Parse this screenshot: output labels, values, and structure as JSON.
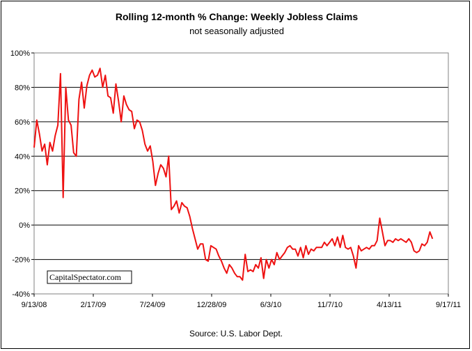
{
  "chart_data": {
    "type": "line",
    "title": "Rolling 12-month %  Change: Weekly Jobless Claims",
    "subtitle": "not seasonally adjusted",
    "source": "Source: U.S. Labor Dept.",
    "watermark": "CapitalSpectator.com",
    "x_start_date": "2008-09-13",
    "x_end_date": "2011-09-17",
    "xlabel": "",
    "ylabel": "",
    "ylim": [
      -40,
      100
    ],
    "y_ticks": [
      100,
      80,
      60,
      40,
      20,
      0,
      -20,
      -40
    ],
    "y_tick_labels": [
      "100%",
      "80%",
      "60%",
      "40%",
      "20%",
      "0%",
      "-20%",
      "-40%"
    ],
    "x_ticks": [
      "2008-09-13",
      "2009-02-17",
      "2009-07-24",
      "2009-12-28",
      "2010-06-03",
      "2010-11-07",
      "2011-04-13",
      "2011-09-17"
    ],
    "x_tick_labels": [
      "9/13/08",
      "2/17/09",
      "7/24/09",
      "12/28/09",
      "6/3/10",
      "11/7/10",
      "4/13/11",
      "9/17/11"
    ],
    "grid": "horizontal",
    "legend": "none",
    "line_color": "#ee1111",
    "series": [
      {
        "values": [
          [
            0,
            45
          ],
          [
            7,
            61
          ],
          [
            14,
            53
          ],
          [
            21,
            43
          ],
          [
            28,
            47
          ],
          [
            35,
            35
          ],
          [
            42,
            48
          ],
          [
            49,
            43
          ],
          [
            56,
            52
          ],
          [
            63,
            58
          ],
          [
            70,
            88
          ],
          [
            77,
            16
          ],
          [
            84,
            80
          ],
          [
            91,
            61
          ],
          [
            98,
            58
          ],
          [
            105,
            42
          ],
          [
            112,
            40
          ],
          [
            119,
            73
          ],
          [
            126,
            83
          ],
          [
            133,
            68
          ],
          [
            140,
            81
          ],
          [
            147,
            87
          ],
          [
            154,
            90
          ],
          [
            161,
            86
          ],
          [
            168,
            87
          ],
          [
            175,
            91
          ],
          [
            182,
            80
          ],
          [
            189,
            87
          ],
          [
            196,
            75
          ],
          [
            203,
            74
          ],
          [
            210,
            65
          ],
          [
            217,
            82
          ],
          [
            224,
            72
          ],
          [
            231,
            60
          ],
          [
            238,
            75
          ],
          [
            245,
            70
          ],
          [
            252,
            67
          ],
          [
            259,
            66
          ],
          [
            266,
            56
          ],
          [
            273,
            61
          ],
          [
            280,
            60
          ],
          [
            287,
            55
          ],
          [
            294,
            47
          ],
          [
            301,
            43
          ],
          [
            308,
            46
          ],
          [
            315,
            37
          ],
          [
            322,
            23
          ],
          [
            329,
            30
          ],
          [
            336,
            35
          ],
          [
            343,
            33
          ],
          [
            350,
            28
          ],
          [
            357,
            40
          ],
          [
            364,
            9
          ],
          [
            371,
            11
          ],
          [
            378,
            14
          ],
          [
            385,
            7
          ],
          [
            392,
            13
          ],
          [
            399,
            11
          ],
          [
            406,
            10
          ],
          [
            413,
            5
          ],
          [
            420,
            -2
          ],
          [
            427,
            -8
          ],
          [
            434,
            -14
          ],
          [
            441,
            -11
          ],
          [
            448,
            -11
          ],
          [
            455,
            -20
          ],
          [
            462,
            -21
          ],
          [
            469,
            -12
          ],
          [
            476,
            -13
          ],
          [
            483,
            -14
          ],
          [
            490,
            -18
          ],
          [
            497,
            -21
          ],
          [
            504,
            -25
          ],
          [
            511,
            -28
          ],
          [
            518,
            -23
          ],
          [
            525,
            -25
          ],
          [
            532,
            -28
          ],
          [
            539,
            -30
          ],
          [
            546,
            -30
          ],
          [
            553,
            -32
          ],
          [
            560,
            -17
          ],
          [
            567,
            -27
          ],
          [
            574,
            -26
          ],
          [
            581,
            -27
          ],
          [
            588,
            -23
          ],
          [
            595,
            -25
          ],
          [
            602,
            -19
          ],
          [
            609,
            -31
          ],
          [
            616,
            -20
          ],
          [
            623,
            -25
          ],
          [
            630,
            -20
          ],
          [
            637,
            -23
          ],
          [
            644,
            -16
          ],
          [
            651,
            -20
          ],
          [
            658,
            -18
          ],
          [
            665,
            -16
          ],
          [
            672,
            -13
          ],
          [
            679,
            -12
          ],
          [
            686,
            -14
          ],
          [
            693,
            -14
          ],
          [
            700,
            -18
          ],
          [
            707,
            -13
          ],
          [
            714,
            -19
          ],
          [
            721,
            -12
          ],
          [
            728,
            -17
          ],
          [
            735,
            -14
          ],
          [
            742,
            -15
          ],
          [
            749,
            -13
          ],
          [
            756,
            -13
          ],
          [
            763,
            -13
          ],
          [
            770,
            -10
          ],
          [
            777,
            -12
          ],
          [
            784,
            -10
          ],
          [
            791,
            -8
          ],
          [
            798,
            -12
          ],
          [
            805,
            -7
          ],
          [
            812,
            -13
          ],
          [
            819,
            -6
          ],
          [
            826,
            -13
          ],
          [
            833,
            -14
          ],
          [
            840,
            -13
          ],
          [
            847,
            -18
          ],
          [
            854,
            -25
          ],
          [
            861,
            -12
          ],
          [
            868,
            -15
          ],
          [
            875,
            -14
          ],
          [
            882,
            -13
          ],
          [
            889,
            -14
          ],
          [
            896,
            -12
          ],
          [
            903,
            -12
          ],
          [
            910,
            -9
          ],
          [
            917,
            4
          ],
          [
            924,
            -4
          ],
          [
            931,
            -12
          ],
          [
            938,
            -9
          ],
          [
            945,
            -9
          ],
          [
            952,
            -10
          ],
          [
            959,
            -8
          ],
          [
            966,
            -9
          ],
          [
            973,
            -8
          ],
          [
            980,
            -9
          ],
          [
            987,
            -10
          ],
          [
            994,
            -8
          ],
          [
            1001,
            -10
          ],
          [
            1008,
            -15
          ],
          [
            1015,
            -16
          ],
          [
            1022,
            -15
          ],
          [
            1029,
            -11
          ],
          [
            1036,
            -12
          ],
          [
            1043,
            -10
          ],
          [
            1050,
            -4
          ],
          [
            1057,
            -8
          ]
        ]
      }
    ]
  }
}
